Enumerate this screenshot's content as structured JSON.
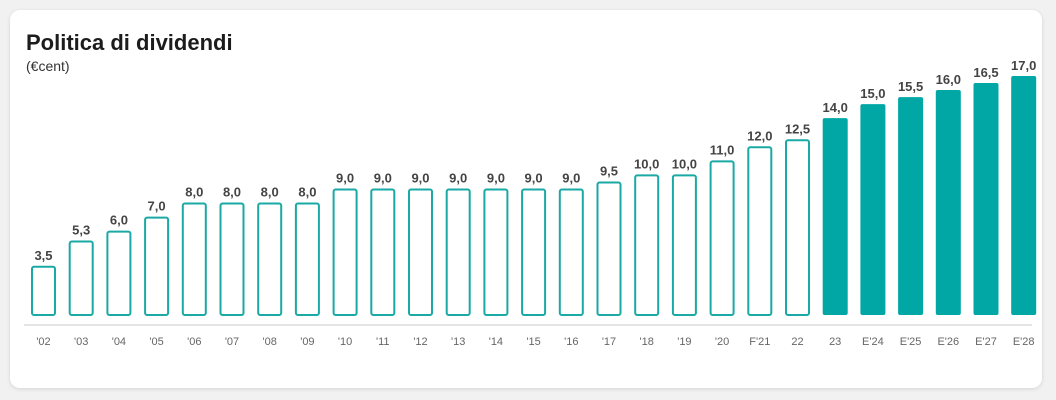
{
  "chart_data": {
    "type": "bar",
    "title": "Politica di dividendi",
    "subtitle": "(€cent)",
    "categories": [
      "'02",
      "'03",
      "'04",
      "'05",
      "'06",
      "'07",
      "'08",
      "'09",
      "'10",
      "'11",
      "'12",
      "'13",
      "'14",
      "'15",
      "'16",
      "'17",
      "'18",
      "'19",
      "'20",
      "F'21",
      "22",
      "23",
      "E'24",
      "E'25",
      "E'26",
      "E'27",
      "E'28"
    ],
    "values": [
      3.5,
      5.3,
      6.0,
      7.0,
      8.0,
      8.0,
      8.0,
      8.0,
      9.0,
      9.0,
      9.0,
      9.0,
      9.0,
      9.0,
      9.0,
      9.5,
      10.0,
      10.0,
      11.0,
      12.0,
      12.5,
      14.0,
      15.0,
      15.5,
      16.0,
      16.5,
      17.0
    ],
    "value_labels": [
      "3,5",
      "5,3",
      "6,0",
      "7,0",
      "8,0",
      "8,0",
      "8,0",
      "8,0",
      "9,0",
      "9,0",
      "9,0",
      "9,0",
      "9,0",
      "9,0",
      "9,0",
      "9,5",
      "10,0",
      "10,0",
      "11,0",
      "12,0",
      "12,5",
      "14,0",
      "15,0",
      "15,5",
      "16,0",
      "16,5",
      "17,0"
    ],
    "filled": [
      false,
      false,
      false,
      false,
      false,
      false,
      false,
      false,
      false,
      false,
      false,
      false,
      false,
      false,
      false,
      false,
      false,
      false,
      false,
      false,
      false,
      true,
      true,
      true,
      true,
      true,
      true
    ],
    "ylim": [
      0,
      17.5
    ],
    "xlabel": "",
    "ylabel": "",
    "grid": false,
    "colors": {
      "bar": "#00a7a5",
      "outline": "#1aa9a4",
      "baseline": "#c8c8c8"
    }
  }
}
